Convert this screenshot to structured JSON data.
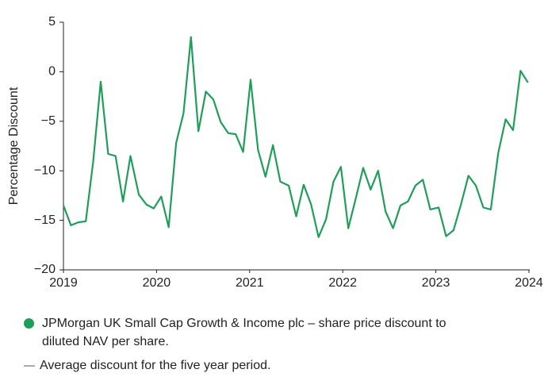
{
  "chart_data": {
    "type": "line",
    "y_label": "Percentage Discount",
    "x": [
      2019.0,
      2019.08,
      2019.16,
      2019.24,
      2019.32,
      2019.4,
      2019.48,
      2019.56,
      2019.64,
      2019.72,
      2019.81,
      2019.89,
      2019.97,
      2020.05,
      2020.13,
      2020.21,
      2020.29,
      2020.37,
      2020.45,
      2020.53,
      2020.61,
      2020.69,
      2020.77,
      2020.85,
      2020.93,
      2021.01,
      2021.09,
      2021.17,
      2021.25,
      2021.33,
      2021.42,
      2021.5,
      2021.58,
      2021.66,
      2021.74,
      2021.82,
      2021.9,
      2021.98,
      2022.06,
      2022.14,
      2022.22,
      2022.3,
      2022.38,
      2022.46,
      2022.54,
      2022.62,
      2022.7,
      2022.78,
      2022.86,
      2022.94,
      2023.03,
      2023.11,
      2023.19,
      2023.27,
      2023.35,
      2023.43,
      2023.51,
      2023.59,
      2023.67,
      2023.75,
      2023.83,
      2023.91,
      2023.99
    ],
    "series": [
      {
        "name": "JPMorgan UK Small Cap Growth & Income plc – share price discount to diluted NAV per share.",
        "color": "#1f9e5a",
        "values": [
          -13.5,
          -15.5,
          -15.2,
          -15.1,
          -9,
          -1,
          -8.3,
          -8.5,
          -13.1,
          -8.5,
          -12.4,
          -13.4,
          -13.8,
          -12.6,
          -15.7,
          -7.2,
          -4.2,
          3.5,
          -6,
          -2,
          -2.8,
          -5.1,
          -6.2,
          -6.3,
          -8.1,
          -0.8,
          -7.9,
          -10.6,
          -7.4,
          -11.1,
          -11.5,
          -14.6,
          -11.4,
          -13.4,
          -16.7,
          -14.9,
          -11.1,
          -9.6,
          -15.8,
          -12.8,
          -9.7,
          -11.9,
          -10,
          -14.1,
          -15.8,
          -13.5,
          -13.1,
          -11.5,
          -10.9,
          -13.9,
          -13.7,
          -16.6,
          -16,
          -13.4,
          -10.5,
          -11.5,
          -13.7,
          -13.9,
          -8.2,
          -4.8,
          -5.9,
          0.1,
          -1.1
        ]
      }
    ],
    "legend_note": "Average discount for the five year period.",
    "xlim": [
      2019,
      2024
    ],
    "xticks": [
      2019,
      2020,
      2021,
      2022,
      2023,
      2024
    ],
    "ylim": [
      -20,
      5
    ],
    "yticks": [
      5,
      0,
      {
        "value": -5,
        "label": "−5"
      },
      {
        "value": -10,
        "label": "−10"
      },
      {
        "value": -15,
        "label": "−15"
      },
      {
        "value": -20,
        "label": "−20"
      }
    ],
    "grid": false
  }
}
